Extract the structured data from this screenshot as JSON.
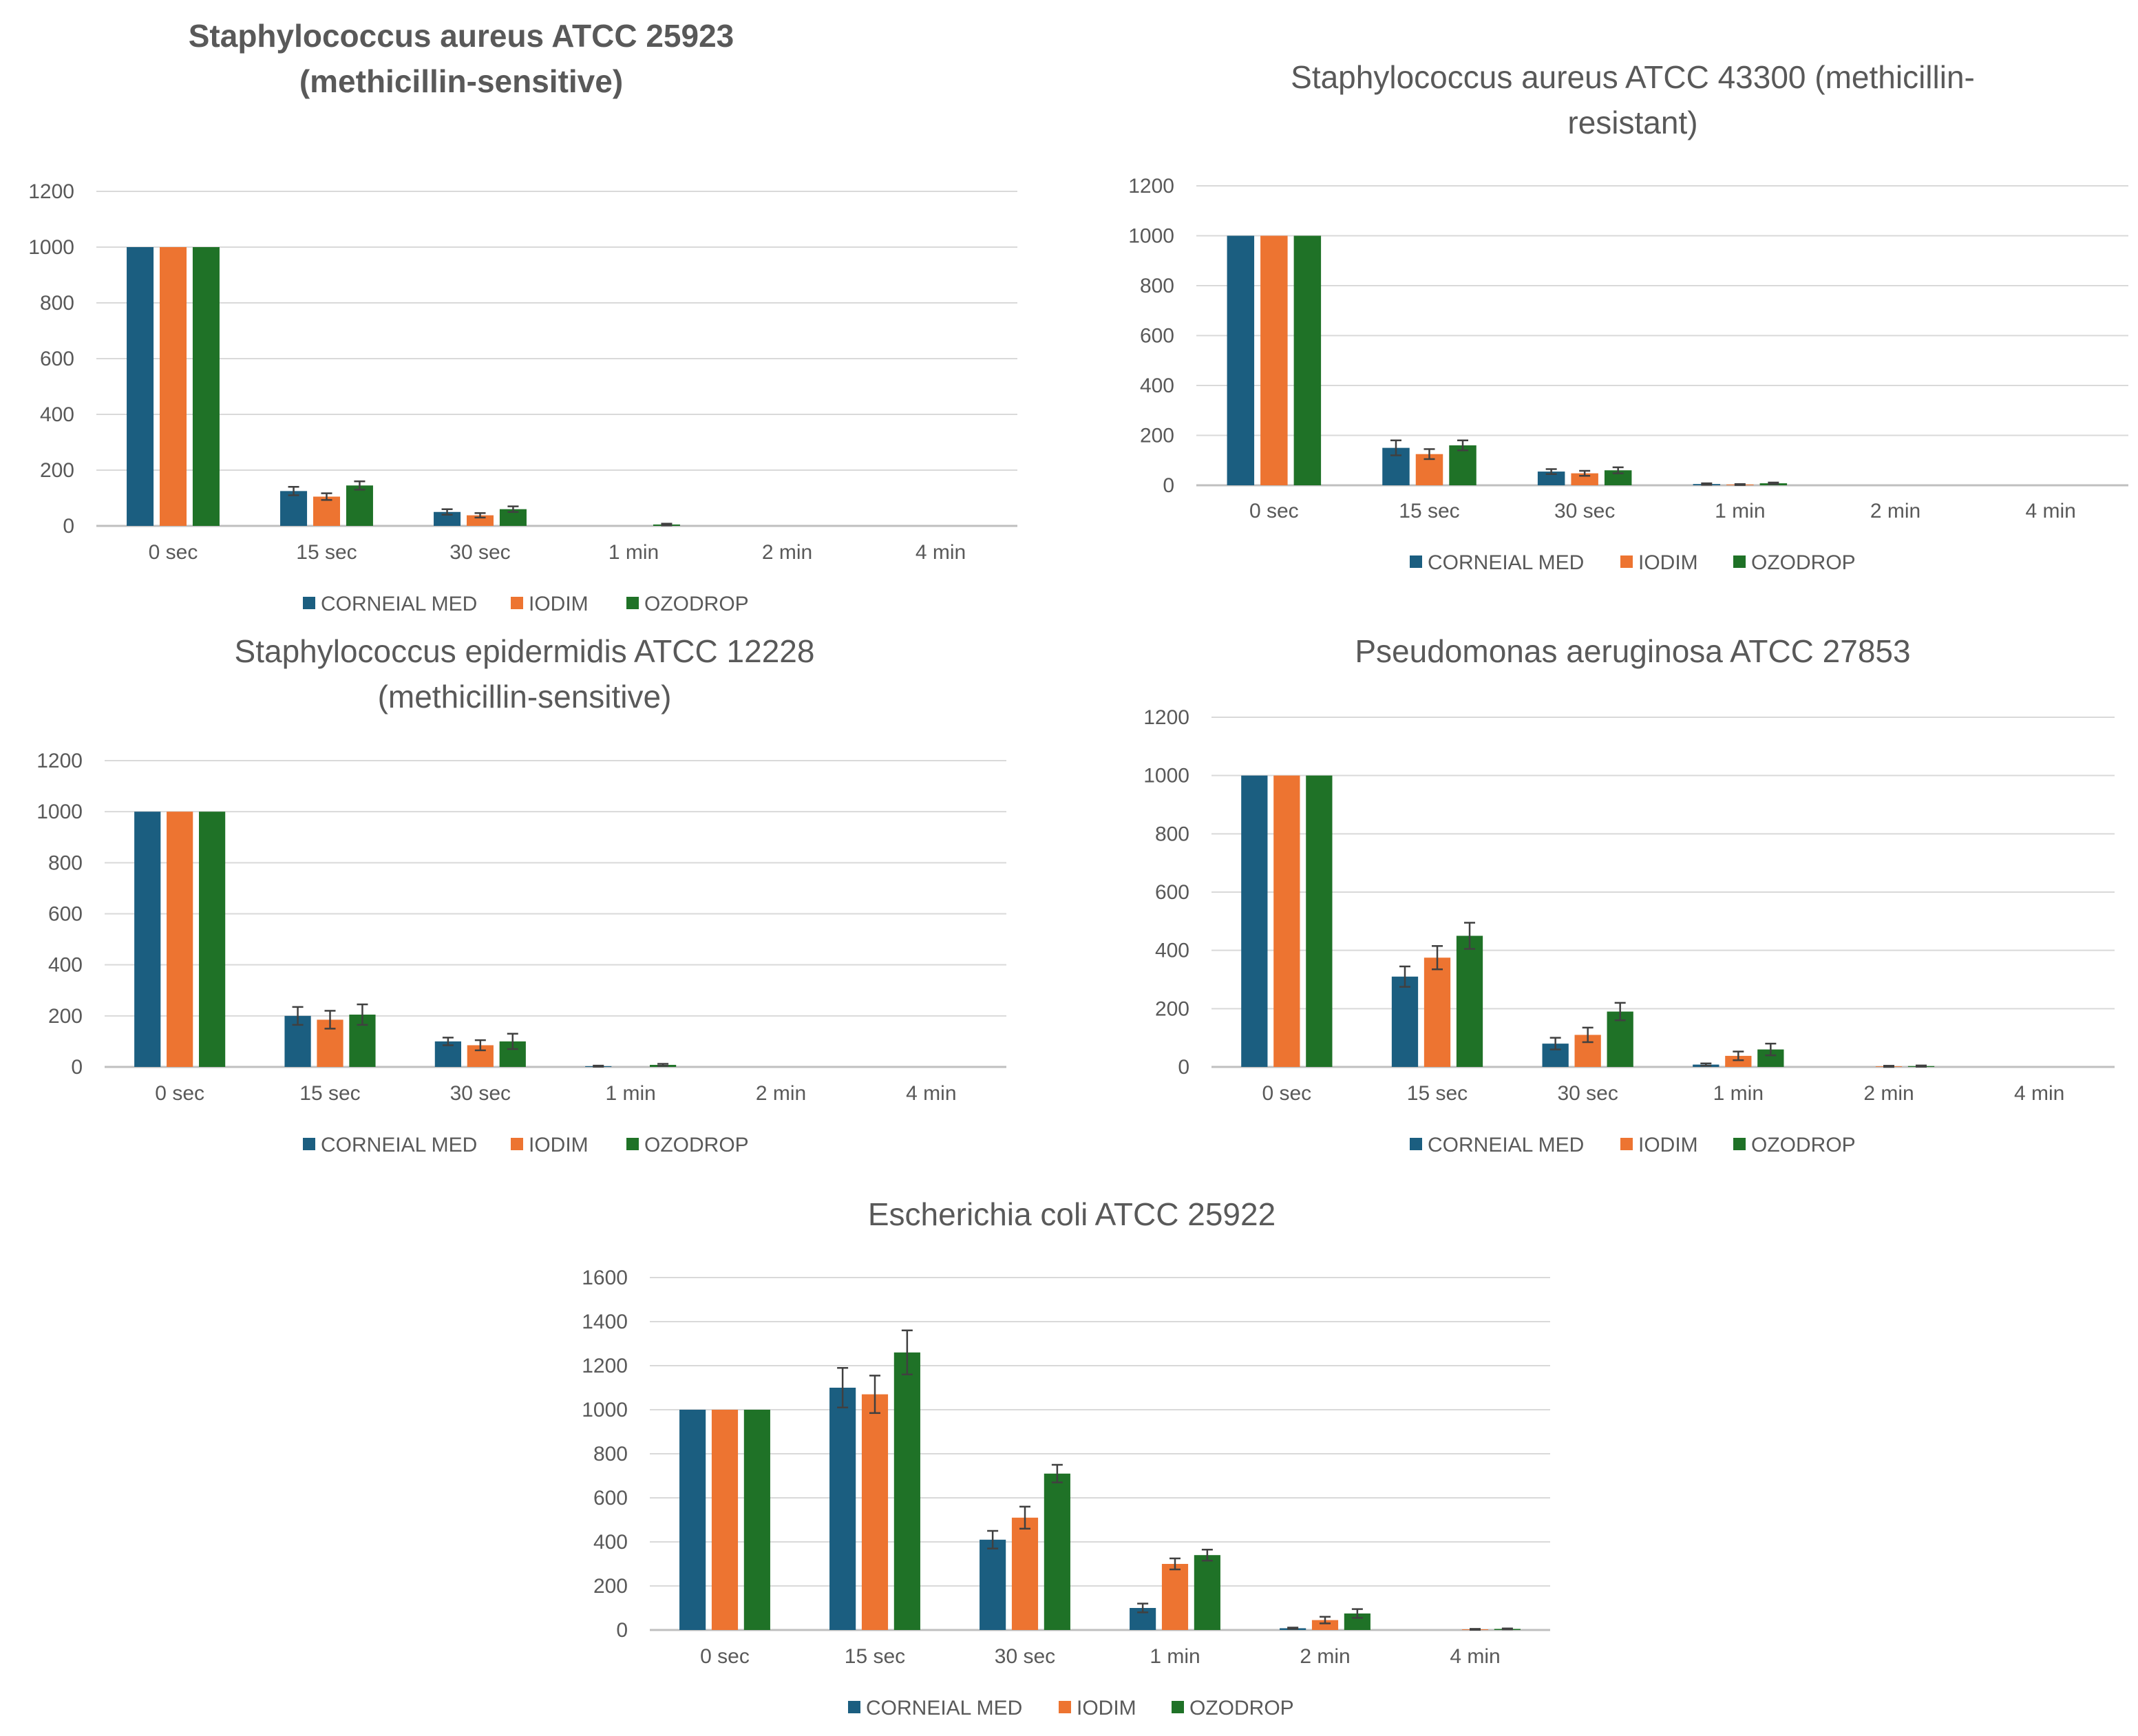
{
  "colors": {
    "CORNEIAL MED": "#1b5e80",
    "IODIM": "#ed7431",
    "OZODROP": "#1f7227",
    "axis": "#bfbfbf",
    "grid": "#d9d9d9",
    "text": "#595959",
    "error_bar": "#404040"
  },
  "chart_data": [
    {
      "type": "bar",
      "title_lines": [
        "Staphylococcus aureus ATCC 25923",
        "(methicillin-sensitive)"
      ],
      "title_bold": true,
      "categories": [
        "0 sec",
        "15 sec",
        "30 sec",
        "1 min",
        "2 min",
        "4 min"
      ],
      "ylim": [
        0,
        1200
      ],
      "yticks": [
        0,
        200,
        400,
        600,
        800,
        1000,
        1200
      ],
      "grid": true,
      "legend": "bottom",
      "series": [
        {
          "name": "CORNEIAL MED",
          "values": [
            1000,
            125,
            50,
            0,
            0,
            0
          ],
          "errors": [
            0,
            15,
            10,
            0,
            0,
            0
          ]
        },
        {
          "name": "IODIM",
          "values": [
            1000,
            105,
            38,
            0,
            0,
            0
          ],
          "errors": [
            0,
            12,
            8,
            0,
            0,
            0
          ]
        },
        {
          "name": "OZODROP",
          "values": [
            1000,
            145,
            60,
            5,
            0,
            0
          ],
          "errors": [
            0,
            15,
            10,
            3,
            0,
            0
          ]
        }
      ]
    },
    {
      "type": "bar",
      "title_lines": [
        "Staphylococcus aureus ATCC 43300 (methicillin-",
        "resistant)"
      ],
      "title_bold": false,
      "categories": [
        "0 sec",
        "15 sec",
        "30 sec",
        "1 min",
        "2 min",
        "4 min"
      ],
      "ylim": [
        0,
        1200
      ],
      "yticks": [
        0,
        200,
        400,
        600,
        800,
        1000,
        1200
      ],
      "grid": true,
      "legend": "bottom",
      "series": [
        {
          "name": "CORNEIAL MED",
          "values": [
            1000,
            150,
            55,
            5,
            0,
            0
          ],
          "errors": [
            0,
            30,
            10,
            3,
            0,
            0
          ]
        },
        {
          "name": "IODIM",
          "values": [
            1000,
            125,
            48,
            3,
            0,
            0
          ],
          "errors": [
            0,
            20,
            10,
            2,
            0,
            0
          ]
        },
        {
          "name": "OZODROP",
          "values": [
            1000,
            160,
            60,
            8,
            0,
            0
          ],
          "errors": [
            0,
            20,
            12,
            3,
            0,
            0
          ]
        }
      ]
    },
    {
      "type": "bar",
      "title_lines": [
        "Staphylococcus epidermidis ATCC 12228",
        "(methicillin-sensitive)"
      ],
      "title_bold": false,
      "categories": [
        "0 sec",
        "15 sec",
        "30 sec",
        "1 min",
        "2 min",
        "4 min"
      ],
      "ylim": [
        0,
        1200
      ],
      "yticks": [
        0,
        200,
        400,
        600,
        800,
        1000,
        1200
      ],
      "grid": true,
      "legend": "bottom",
      "series": [
        {
          "name": "CORNEIAL MED",
          "values": [
            1000,
            200,
            100,
            3,
            0,
            0
          ],
          "errors": [
            0,
            35,
            15,
            2,
            0,
            0
          ]
        },
        {
          "name": "IODIM",
          "values": [
            1000,
            185,
            85,
            0,
            0,
            0
          ],
          "errors": [
            0,
            35,
            20,
            0,
            0,
            0
          ]
        },
        {
          "name": "OZODROP",
          "values": [
            1000,
            205,
            100,
            8,
            0,
            0
          ],
          "errors": [
            0,
            40,
            30,
            4,
            0,
            0
          ]
        }
      ]
    },
    {
      "type": "bar",
      "title_lines": [
        "Pseudomonas aeruginosa ATCC 27853"
      ],
      "title_bold": false,
      "categories": [
        "0 sec",
        "15 sec",
        "30 sec",
        "1 min",
        "2 min",
        "4 min"
      ],
      "ylim": [
        0,
        1200
      ],
      "yticks": [
        0,
        200,
        400,
        600,
        800,
        1000,
        1200
      ],
      "grid": true,
      "legend": "bottom",
      "series": [
        {
          "name": "CORNEIAL MED",
          "values": [
            1000,
            310,
            80,
            8,
            0,
            0
          ],
          "errors": [
            0,
            35,
            20,
            4,
            0,
            0
          ]
        },
        {
          "name": "IODIM",
          "values": [
            1000,
            375,
            110,
            38,
            2,
            0
          ],
          "errors": [
            0,
            40,
            25,
            15,
            2,
            0
          ]
        },
        {
          "name": "OZODROP",
          "values": [
            1000,
            450,
            190,
            60,
            3,
            0
          ],
          "errors": [
            0,
            45,
            30,
            20,
            2,
            0
          ]
        }
      ]
    },
    {
      "type": "bar",
      "title_lines": [
        "Escherichia coli ATCC 25922"
      ],
      "title_bold": false,
      "categories": [
        "0 sec",
        "15 sec",
        "30 sec",
        "1 min",
        "2 min",
        "4 min"
      ],
      "ylim": [
        0,
        1600
      ],
      "yticks": [
        0,
        200,
        400,
        600,
        800,
        1000,
        1200,
        1400,
        1600
      ],
      "grid": true,
      "legend": "bottom",
      "series": [
        {
          "name": "CORNEIAL MED",
          "values": [
            1000,
            1100,
            410,
            100,
            8,
            0
          ],
          "errors": [
            0,
            90,
            40,
            20,
            3,
            0
          ]
        },
        {
          "name": "IODIM",
          "values": [
            1000,
            1070,
            510,
            300,
            45,
            3
          ],
          "errors": [
            0,
            85,
            50,
            25,
            15,
            2
          ]
        },
        {
          "name": "OZODROP",
          "values": [
            1000,
            1260,
            710,
            340,
            75,
            5
          ],
          "errors": [
            0,
            100,
            40,
            25,
            20,
            2
          ]
        }
      ]
    }
  ]
}
